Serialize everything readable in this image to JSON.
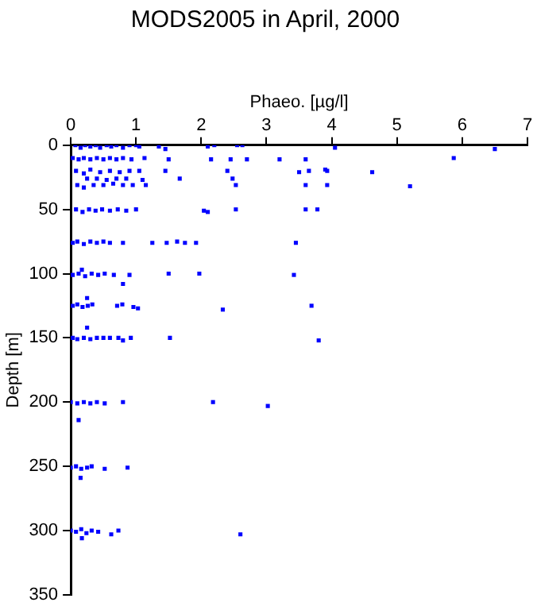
{
  "chart_data": {
    "type": "scatter",
    "title": "MODS2005 in April, 2000",
    "xlabel": "Phaeo. [µg/l]",
    "ylabel": "Depth [m]",
    "x": [
      0.07,
      0.15,
      0.22,
      0.3,
      0.38,
      0.45,
      0.55,
      0.62,
      0.7,
      0.8,
      0.9,
      1.0,
      1.05,
      1.35,
      1.45,
      2.1,
      2.2,
      2.55,
      2.63,
      4.05,
      6.5,
      0.03,
      0.12,
      0.2,
      0.3,
      0.4,
      0.5,
      0.6,
      0.7,
      0.8,
      0.93,
      1.13,
      1.5,
      2.15,
      2.45,
      2.7,
      3.2,
      3.6,
      5.87,
      0.08,
      0.2,
      0.3,
      0.45,
      0.6,
      0.75,
      0.9,
      1.05,
      1.45,
      2.4,
      3.5,
      3.65,
      3.9,
      3.93,
      4.62,
      0.25,
      0.4,
      0.55,
      0.7,
      0.85,
      1.1,
      1.67,
      2.48,
      0.1,
      0.2,
      0.35,
      0.5,
      0.65,
      0.8,
      0.95,
      1.15,
      2.53,
      3.6,
      3.93,
      5.2,
      0.08,
      0.18,
      0.28,
      0.38,
      0.48,
      0.6,
      0.72,
      0.85,
      1.0,
      2.04,
      2.1,
      2.53,
      3.6,
      3.78,
      0.03,
      0.1,
      0.2,
      0.3,
      0.4,
      0.5,
      0.6,
      0.8,
      1.25,
      1.47,
      1.63,
      1.75,
      1.92,
      3.45,
      0.17,
      0.03,
      0.12,
      0.22,
      0.32,
      0.42,
      0.52,
      0.66,
      0.9,
      0.8,
      1.5,
      1.97,
      3.42,
      0.25,
      0.03,
      0.1,
      0.18,
      0.26,
      0.33,
      0.71,
      0.79,
      0.96,
      1.03,
      2.33,
      3.69,
      0.25,
      0.03,
      0.1,
      0.2,
      0.3,
      0.4,
      0.5,
      0.6,
      0.73,
      0.8,
      0.92,
      1.52,
      3.8,
      0,
      0.1,
      0.2,
      0.3,
      0.4,
      0.52,
      0.8,
      2.18,
      3.02,
      0.12,
      0,
      0.08,
      0.16,
      0.25,
      0.32,
      0.52,
      0.87,
      0.15,
      0,
      0.08,
      0.16,
      0.24,
      0.32,
      0.42,
      0.62,
      0.73,
      2.6,
      0.17
    ],
    "values": [
      0,
      2,
      0,
      1,
      0,
      2,
      0,
      1,
      0,
      2,
      0,
      0,
      1,
      1,
      3,
      1,
      0,
      0,
      0,
      2,
      3,
      10,
      11,
      10,
      11,
      10,
      11,
      10,
      11,
      10,
      11,
      10,
      11,
      11,
      11,
      11,
      11,
      11,
      10,
      20,
      22,
      19,
      21,
      20,
      21,
      20,
      20,
      20,
      20,
      21,
      20,
      19,
      20,
      21,
      26,
      26,
      27,
      26,
      26,
      27,
      26,
      26,
      31,
      33,
      31,
      31,
      30,
      31,
      31,
      31,
      31,
      31,
      31,
      32,
      50,
      52,
      50,
      51,
      50,
      51,
      50,
      51,
      50,
      51,
      52,
      50,
      50,
      50,
      76,
      75,
      77,
      75,
      76,
      75,
      76,
      76,
      76,
      76,
      75,
      76,
      76,
      76,
      97,
      101,
      100,
      102,
      100,
      101,
      100,
      101,
      101,
      108,
      100,
      100,
      101,
      119,
      125,
      124,
      126,
      125,
      124,
      125,
      124,
      126,
      127,
      128,
      125,
      142,
      150,
      151,
      150,
      151,
      150,
      150,
      150,
      150,
      152,
      150,
      150,
      152,
      200,
      201,
      200,
      201,
      200,
      201,
      200,
      200,
      203,
      214,
      251,
      250,
      252,
      251,
      250,
      252,
      251,
      259,
      300,
      301,
      299,
      302,
      300,
      301,
      303,
      300,
      303,
      306
    ],
    "color": "#0000ff",
    "marker": "square",
    "xlim": [
      0,
      7
    ],
    "xticks": [
      0,
      1,
      2,
      3,
      4,
      5,
      6,
      7
    ],
    "ylim": [
      350,
      0
    ],
    "yticks": [
      0,
      50,
      100,
      150,
      200,
      250,
      300,
      350
    ],
    "grid": false,
    "legend": false
  }
}
